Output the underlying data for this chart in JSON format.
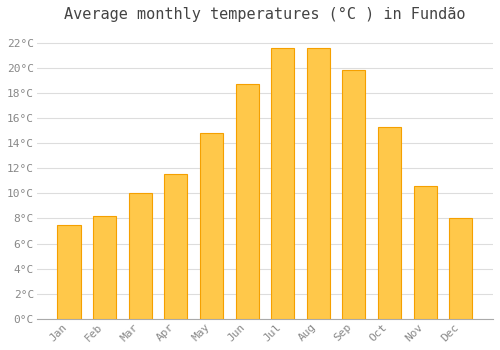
{
  "title": "Average monthly temperatures (°C ) in Fundão",
  "months": [
    "Jan",
    "Feb",
    "Mar",
    "Apr",
    "May",
    "Jun",
    "Jul",
    "Aug",
    "Sep",
    "Oct",
    "Nov",
    "Dec"
  ],
  "values": [
    7.5,
    8.2,
    10.0,
    11.5,
    14.8,
    18.7,
    21.6,
    21.6,
    19.8,
    15.3,
    10.6,
    8.0
  ],
  "bar_color_center": "#FFC84A",
  "bar_color_edge": "#F5A000",
  "background_color": "#FFFFFF",
  "plot_bg_color": "#FFFFFF",
  "grid_color": "#DDDDDD",
  "ytick_label_color": "#888888",
  "xtick_label_color": "#888888",
  "title_color": "#444444",
  "ylim": [
    0,
    23
  ],
  "ytick_step": 2,
  "title_fontsize": 11,
  "tick_fontsize": 8,
  "font_family": "monospace"
}
